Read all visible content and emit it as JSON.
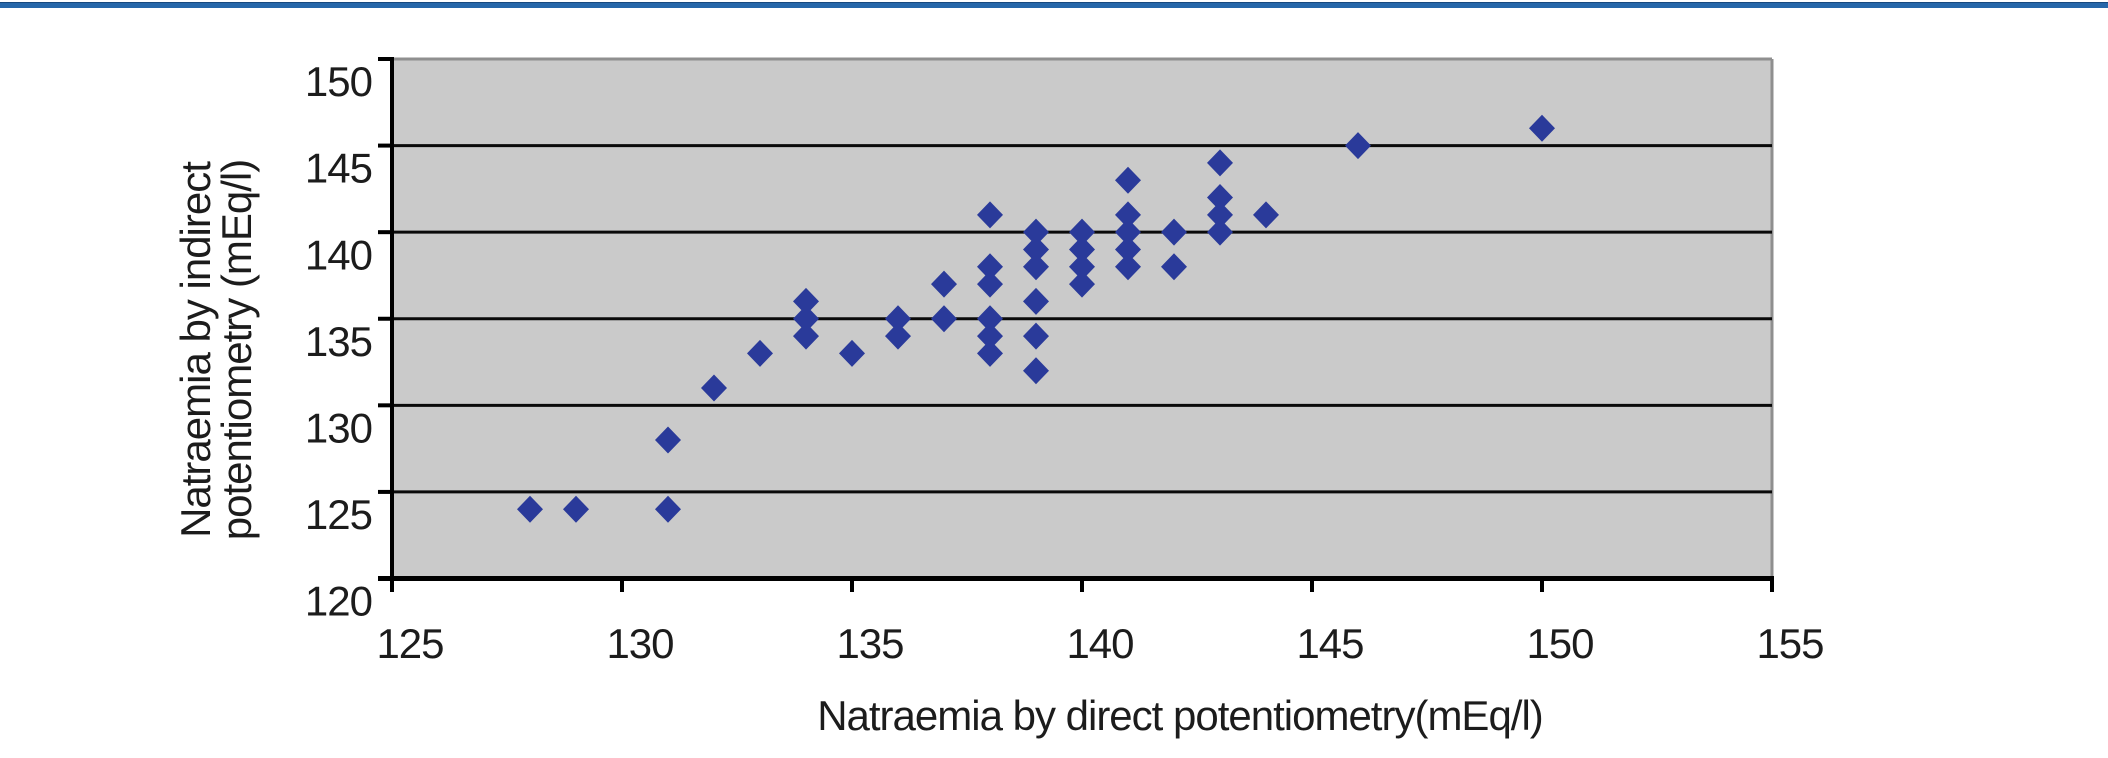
{
  "page": {
    "background": "#ffffff",
    "top_rule_color": "#2667a9"
  },
  "chart_data": {
    "type": "scatter",
    "title": "",
    "xlabel": "Natraemia by direct potentiometry(mEq/l)",
    "ylabel_lines": [
      "Natraemia by indirect",
      "potentiometry (mEq/l)"
    ],
    "xlim": [
      125,
      155
    ],
    "ylim": [
      120,
      150
    ],
    "xticks": [
      125,
      130,
      135,
      140,
      145,
      150,
      155
    ],
    "yticks": [
      120,
      125,
      130,
      135,
      140,
      145,
      150
    ],
    "grid": "horizontal-only",
    "legend": "none",
    "marker": "diamond",
    "colors": {
      "marker": "#2a3a9a",
      "plot_bg": "#cacaca",
      "grid": "#0a0a0a",
      "axis": "#000000",
      "plot_border": "#8f8f8f",
      "text": "#1c1c1c"
    },
    "points": [
      [
        128,
        124
      ],
      [
        129,
        124
      ],
      [
        131,
        124
      ],
      [
        131,
        128
      ],
      [
        132,
        131
      ],
      [
        133,
        133
      ],
      [
        134,
        136
      ],
      [
        134,
        135
      ],
      [
        134,
        134
      ],
      [
        135,
        133
      ],
      [
        136,
        135
      ],
      [
        136,
        134
      ],
      [
        137,
        137
      ],
      [
        137,
        135
      ],
      [
        138,
        141
      ],
      [
        138,
        138
      ],
      [
        138,
        137
      ],
      [
        138,
        135
      ],
      [
        138,
        134
      ],
      [
        138,
        133
      ],
      [
        139,
        140
      ],
      [
        139,
        139
      ],
      [
        139,
        138
      ],
      [
        139,
        136
      ],
      [
        139,
        134
      ],
      [
        139,
        132
      ],
      [
        140,
        140
      ],
      [
        140,
        139
      ],
      [
        140,
        138
      ],
      [
        140,
        137
      ],
      [
        141,
        143
      ],
      [
        141,
        141
      ],
      [
        141,
        140
      ],
      [
        141,
        139
      ],
      [
        141,
        138
      ],
      [
        142,
        140
      ],
      [
        142,
        138
      ],
      [
        143,
        144
      ],
      [
        143,
        142
      ],
      [
        143,
        141
      ],
      [
        143,
        140
      ],
      [
        144,
        141
      ],
      [
        146,
        145
      ],
      [
        150,
        146
      ]
    ]
  }
}
